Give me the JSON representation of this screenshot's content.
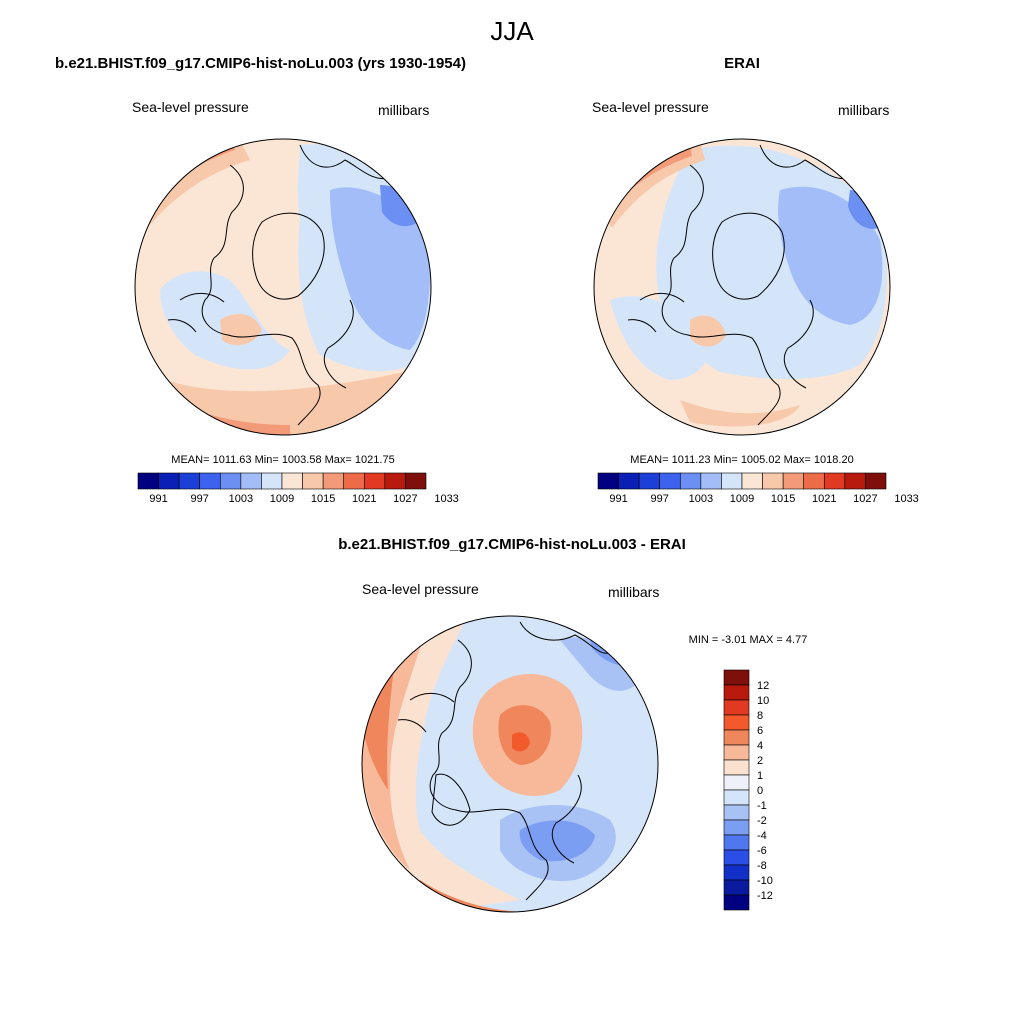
{
  "figure": {
    "title": "JJA"
  },
  "panels": [
    {
      "id": "model",
      "title": "b.e21.BHIST.f09_g17.CMIP6-hist-noLu.003 (yrs 1930-1954)",
      "variable_label": "Sea-level pressure",
      "units_label": "millibars",
      "stats": {
        "mean_label": "MEAN=",
        "mean": "1011.63",
        "min_label": "Min=",
        "min": "1003.58",
        "max_label": "Max=",
        "max": "1021.75"
      },
      "colorbar": {
        "orientation": "horizontal",
        "tick_labels": [
          "991",
          "997",
          "1003",
          "1009",
          "1015",
          "1021",
          "1027",
          "1033"
        ]
      }
    },
    {
      "id": "obs",
      "title": "ERAI",
      "variable_label": "Sea-level pressure",
      "units_label": "millibars",
      "stats": {
        "mean_label": "MEAN=",
        "mean": "1011.23",
        "min_label": "Min=",
        "min": "1005.02",
        "max_label": "Max=",
        "max": "1018.20"
      },
      "colorbar": {
        "orientation": "horizontal",
        "tick_labels": [
          "991",
          "997",
          "1003",
          "1009",
          "1015",
          "1021",
          "1027",
          "1033"
        ]
      }
    },
    {
      "id": "diff",
      "title": "b.e21.BHIST.f09_g17.CMIP6-hist-noLu.003 - ERAI",
      "variable_label": "Sea-level pressure",
      "units_label": "millibars",
      "stats": {
        "min_label": "MIN =",
        "min": "-3.01",
        "max_label": "MAX =",
        "max": "4.77"
      },
      "colorbar": {
        "orientation": "vertical",
        "tick_labels": [
          "12",
          "10",
          "8",
          "6",
          "4",
          "2",
          "1",
          "0",
          "-1",
          "-2",
          "-4",
          "-6",
          "-8",
          "-10",
          "-12"
        ]
      }
    }
  ],
  "colors": {
    "abs_scale": [
      "#000080",
      "#0a1fb5",
      "#1c3fd8",
      "#3c62ee",
      "#6b8ff3",
      "#a2bdf8",
      "#d4e5fa",
      "#fbe6d6",
      "#f8c8aa",
      "#f39a78",
      "#ee6b4a",
      "#e23a22",
      "#b81a0e",
      "#7e0f0b"
    ],
    "diff_scale": [
      "#7e0f0b",
      "#b81a0e",
      "#e23a22",
      "#f25a2c",
      "#f0865c",
      "#f8b89a",
      "#fbe2d0",
      "#eef2f8",
      "#d4e5fa",
      "#a8c2f6",
      "#7b9ef3",
      "#4f78ef",
      "#2a4ee6",
      "#1230c8",
      "#0a1a9c",
      "#000080"
    ],
    "diff_scale_order": "top-to-bottom"
  }
}
